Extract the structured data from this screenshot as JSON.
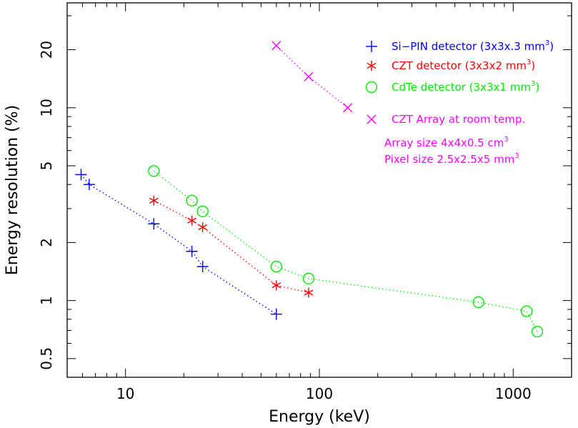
{
  "chart_data": {
    "type": "scatter",
    "title": "",
    "xlabel": "Energy (keV)",
    "ylabel": "Energy resolution (%)",
    "x_scale": "log",
    "y_scale": "log",
    "xlim": [
      5,
      2000
    ],
    "ylim": [
      0.4,
      35
    ],
    "x_ticks": [
      10,
      100,
      1000
    ],
    "x_tick_labels": [
      "10",
      "100",
      "1000"
    ],
    "y_ticks": [
      0.5,
      1,
      2,
      5,
      10,
      20
    ],
    "y_tick_labels": [
      "0.5",
      "1",
      "2",
      "5",
      "10",
      "20"
    ],
    "grid": false,
    "legend_position": "top-right",
    "series": [
      {
        "name": "Si-PIN detector (3x3x.3 mm3)",
        "legend_main": "Si−PIN detector (3x3x.3 mm",
        "legend_sup": "3",
        "legend_end": ")",
        "marker": "plus",
        "color": "#0000ff",
        "line": "dotted",
        "x": [
          5.9,
          6.5,
          14,
          22,
          25,
          60
        ],
        "y": [
          4.5,
          4.0,
          2.5,
          1.8,
          1.5,
          0.85
        ]
      },
      {
        "name": "CZT detector (3x3x2 mm3)",
        "legend_main": "CZT  detector (3x3x2 mm",
        "legend_sup": "3",
        "legend_end": ")",
        "marker": "asterisk",
        "color": "#ff0000",
        "line": "dotted",
        "x": [
          14,
          22,
          25,
          60,
          88
        ],
        "y": [
          3.3,
          2.6,
          2.4,
          1.2,
          1.1
        ]
      },
      {
        "name": "CdTe detector (3x3x1 mm3)",
        "legend_main": "CdTe  detector (3x3x1 mm",
        "legend_sup": "3",
        "legend_end": ")",
        "marker": "circle",
        "color": "#00ee00",
        "line": "dotted",
        "x": [
          14,
          22,
          25,
          60,
          88,
          662,
          1173,
          1332
        ],
        "y": [
          4.7,
          3.3,
          2.9,
          1.5,
          1.3,
          0.98,
          0.88,
          0.69
        ]
      },
      {
        "name": "CZT Array at room temp.",
        "legend_main": "CZT Array  at room temp.",
        "legend_sup": "",
        "legend_end": "",
        "marker": "cross",
        "color": "#ff00ff",
        "line": "dotted",
        "x": [
          60,
          88,
          140
        ],
        "y": [
          21,
          14.5,
          10
        ]
      }
    ],
    "annotations": [
      {
        "id": "array",
        "main": "Array size 4x4x0.5 cm",
        "sup": "3",
        "color": "#ff00ff"
      },
      {
        "id": "pixel",
        "main": "Pixel size 2.5x2.5x5 mm",
        "sup": "3",
        "color": "#ff00ff"
      }
    ]
  }
}
